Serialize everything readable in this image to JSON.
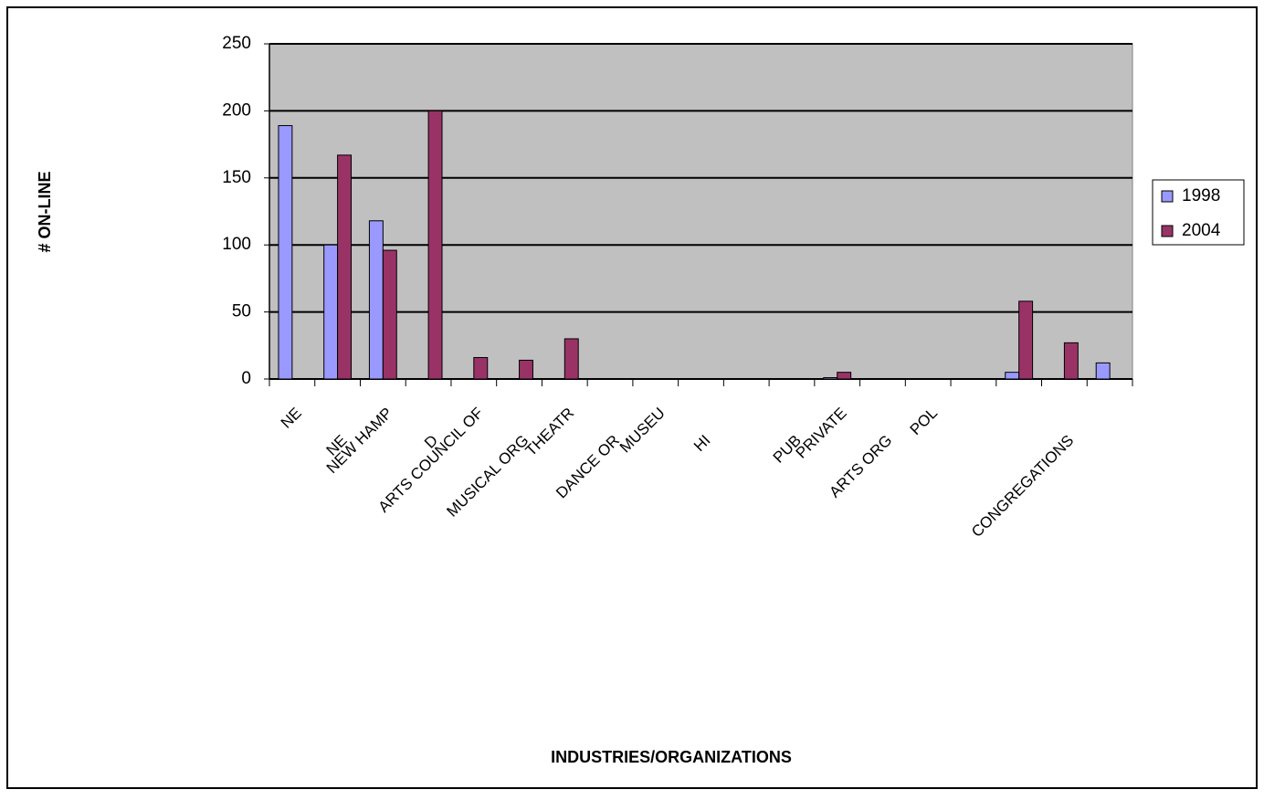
{
  "chart_data": {
    "type": "bar",
    "y_label": "# ON-LINE",
    "x_label": "INDUSTRIES/ORGANIZATIONS",
    "categories": [
      "NE",
      "NE",
      "NEW HAMP",
      "D",
      "ARTS COUNCIL OF",
      "MUSICAL ORG",
      "THEATR",
      "DANCE OR",
      "MUSEU",
      "HI",
      null,
      "PUB",
      "PRIVATE",
      "ARTS ORG",
      "POL",
      null,
      null,
      "CONGREGATIONS",
      null
    ],
    "series": [
      {
        "name": "1998",
        "color": "#9999ff",
        "values": [
          189,
          100,
          118,
          null,
          null,
          null,
          null,
          null,
          null,
          null,
          null,
          null,
          1,
          null,
          null,
          null,
          5,
          null,
          12
        ]
      },
      {
        "name": "2004",
        "color": "#993366",
        "values": [
          null,
          167,
          96,
          200,
          16,
          14,
          30,
          null,
          null,
          null,
          null,
          null,
          5,
          null,
          null,
          null,
          58,
          27,
          null
        ]
      }
    ],
    "ylim": [
      0,
      250
    ],
    "yticks": [
      0,
      50,
      100,
      150,
      200,
      250
    ],
    "grid": true,
    "plot_background": "#c0c0c0",
    "legend": "right"
  }
}
